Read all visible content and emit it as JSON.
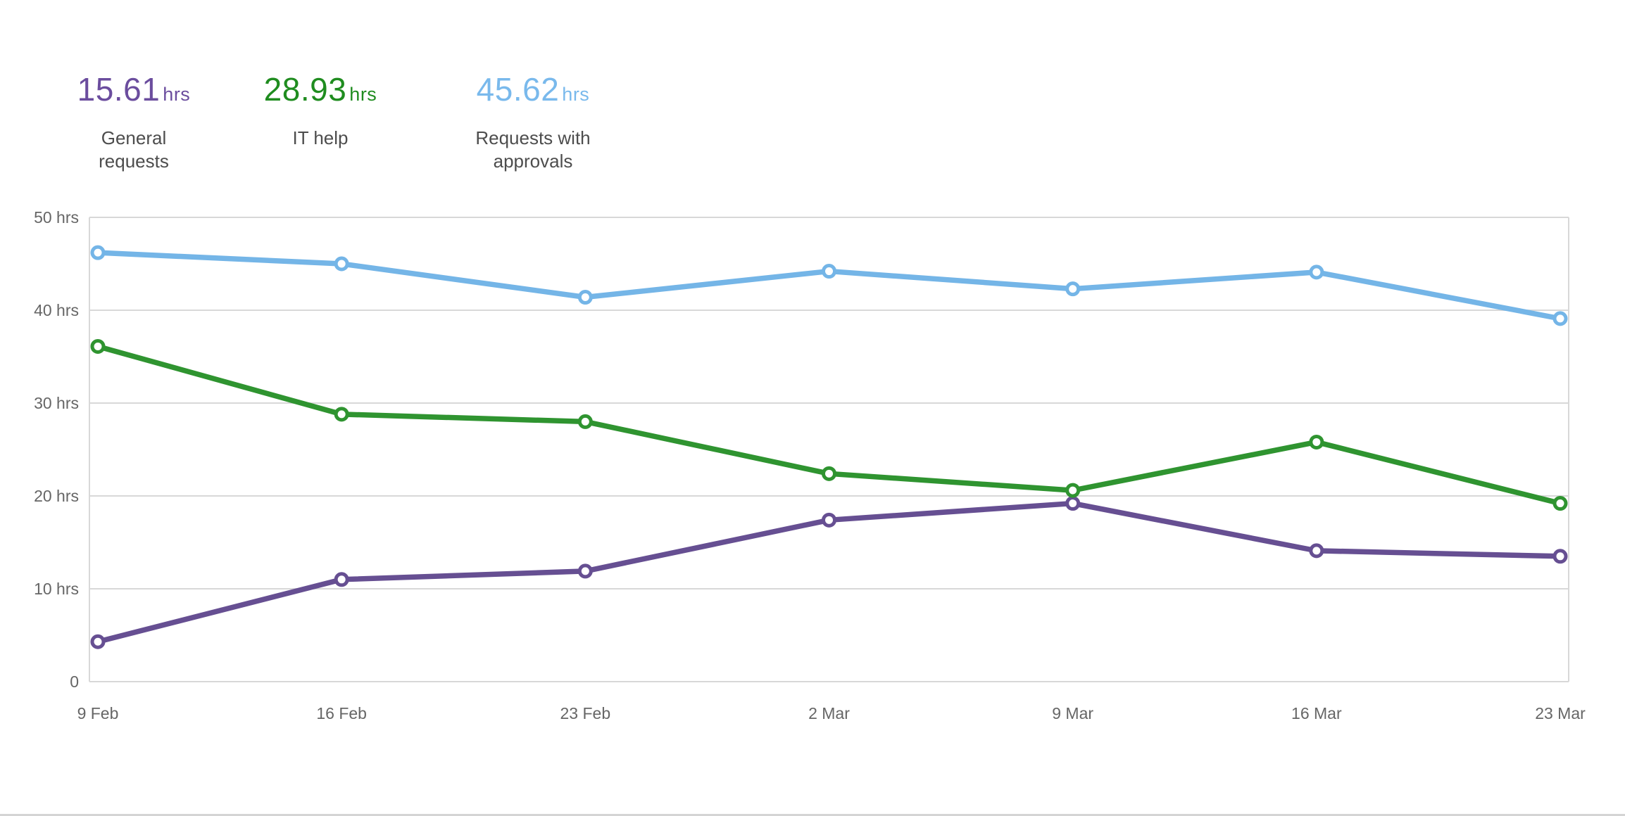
{
  "summary_stats": [
    {
      "value": "15.61",
      "unit": "hrs",
      "label": "General requests",
      "color": "#6b4d9e"
    },
    {
      "value": "28.93",
      "unit": "hrs",
      "label": "IT help",
      "color": "#1f8c1f"
    },
    {
      "value": "45.62",
      "unit": "hrs",
      "label": "Requests with approvals",
      "color": "#79b9ec"
    }
  ],
  "chart_data": {
    "type": "line",
    "title": "",
    "xlabel": "",
    "ylabel": "",
    "categories": [
      "9 Feb",
      "16 Feb",
      "23 Feb",
      "2 Mar",
      "9 Mar",
      "16 Mar",
      "23 Mar"
    ],
    "series": [
      {
        "name": "General requests",
        "color": "#664f92",
        "values": [
          4.3,
          11.0,
          11.9,
          17.4,
          19.2,
          14.1,
          13.5
        ]
      },
      {
        "name": "IT help",
        "color": "#2f9430",
        "values": [
          36.1,
          28.8,
          28.0,
          22.4,
          20.6,
          25.8,
          19.2
        ]
      },
      {
        "name": "Requests with approvals",
        "color": "#74b5e7",
        "values": [
          46.2,
          45.0,
          41.4,
          44.2,
          42.3,
          44.1,
          39.1
        ]
      }
    ],
    "y_ticks": [
      "50 hrs",
      "40 hrs",
      "30 hrs",
      "20 hrs",
      "10 hrs",
      "0"
    ],
    "ylim": [
      0,
      50
    ],
    "unit": "hrs",
    "grid": "horizontal",
    "legend_position": "none",
    "grid_color": "#d8d8d8",
    "axis_text_color": "#666666"
  }
}
